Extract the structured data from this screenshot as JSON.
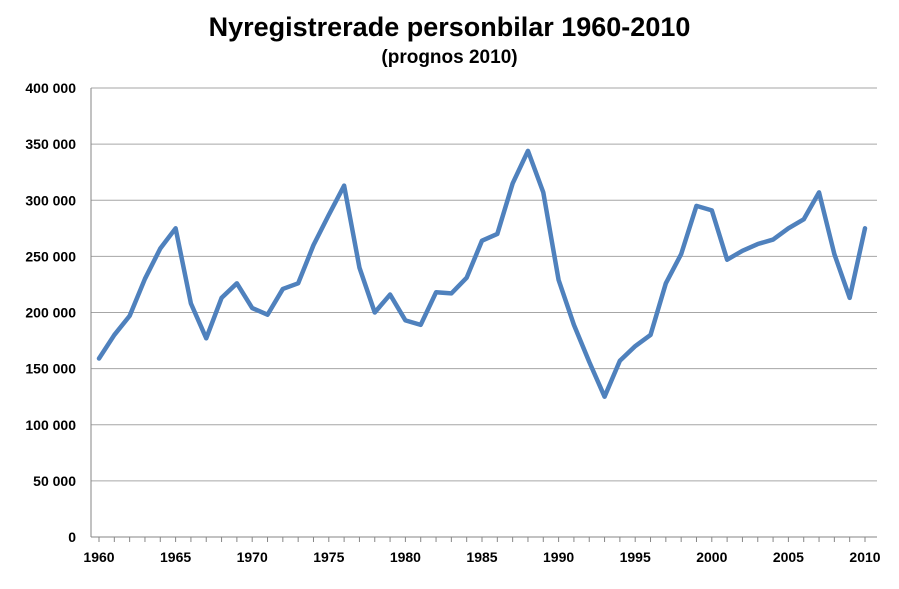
{
  "chart_data": {
    "type": "line",
    "title": "Nyregistrerade personbilar 1960-2010",
    "subtitle": "(prognos 2010)",
    "xlabel": "",
    "ylabel": "",
    "ylim": [
      0,
      400000
    ],
    "xlim": [
      1960,
      2010
    ],
    "grid": true,
    "line_color": "#4F81BD",
    "y_ticks": [
      {
        "value": 0,
        "label": "0"
      },
      {
        "value": 50000,
        "label": "50 000"
      },
      {
        "value": 100000,
        "label": "100 000"
      },
      {
        "value": 150000,
        "label": "150 000"
      },
      {
        "value": 200000,
        "label": "200 000"
      },
      {
        "value": 250000,
        "label": "250 000"
      },
      {
        "value": 300000,
        "label": "300 000"
      },
      {
        "value": 350000,
        "label": "350 000"
      },
      {
        "value": 400000,
        "label": "400 000"
      }
    ],
    "x_ticks": [
      {
        "value": 1960,
        "label": "1960"
      },
      {
        "value": 1965,
        "label": "1965"
      },
      {
        "value": 1970,
        "label": "1970"
      },
      {
        "value": 1975,
        "label": "1975"
      },
      {
        "value": 1980,
        "label": "1980"
      },
      {
        "value": 1985,
        "label": "1985"
      },
      {
        "value": 1990,
        "label": "1990"
      },
      {
        "value": 1995,
        "label": "1995"
      },
      {
        "value": 2000,
        "label": "2000"
      },
      {
        "value": 2005,
        "label": "2005"
      },
      {
        "value": 2010,
        "label": "2010"
      }
    ],
    "series": [
      {
        "name": "Nyregistrerade personbilar",
        "x": [
          1960,
          1961,
          1962,
          1963,
          1964,
          1965,
          1966,
          1967,
          1968,
          1969,
          1970,
          1971,
          1972,
          1973,
          1974,
          1975,
          1976,
          1977,
          1978,
          1979,
          1980,
          1981,
          1982,
          1983,
          1984,
          1985,
          1986,
          1987,
          1988,
          1989,
          1990,
          1991,
          1992,
          1993,
          1994,
          1995,
          1996,
          1997,
          1998,
          1999,
          2000,
          2001,
          2002,
          2003,
          2004,
          2005,
          2006,
          2007,
          2008,
          2009,
          2010
        ],
        "values": [
          159000,
          180000,
          197000,
          230000,
          257000,
          275000,
          208000,
          177000,
          213000,
          226000,
          204000,
          198000,
          221000,
          226000,
          260000,
          287000,
          313000,
          240000,
          200000,
          216000,
          193000,
          189000,
          218000,
          217000,
          231000,
          264000,
          270000,
          315000,
          344000,
          307000,
          229000,
          189000,
          156000,
          125000,
          157000,
          170000,
          180000,
          226000,
          252000,
          295000,
          291000,
          247000,
          255000,
          261000,
          265000,
          275000,
          283000,
          307000,
          252000,
          213000,
          275000
        ]
      }
    ]
  }
}
